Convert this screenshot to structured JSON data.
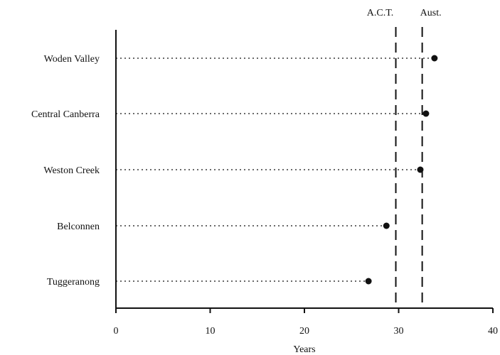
{
  "chart_data": {
    "type": "scatter",
    "orientation": "horizontal",
    "title": "",
    "xlabel": "Years",
    "ylabel": "",
    "xlim": [
      0,
      40
    ],
    "xticks": [
      0,
      10,
      20,
      30,
      40
    ],
    "grid": false,
    "legend": "none",
    "categories": [
      "Woden Valley",
      "Central Canberra",
      "Weston Creek",
      "Belconnen",
      "Tuggeranong"
    ],
    "series": [
      {
        "values": [
          33.8,
          32.9,
          32.3,
          28.7,
          26.8
        ]
      }
    ],
    "reference_lines": [
      {
        "label": "A.C.T.",
        "value": 29.7,
        "style": "dashed"
      },
      {
        "label": "Aust.",
        "value": 32.5,
        "style": "dashed"
      }
    ],
    "colors": {
      "ink": "#111111",
      "background": "#ffffff"
    }
  }
}
